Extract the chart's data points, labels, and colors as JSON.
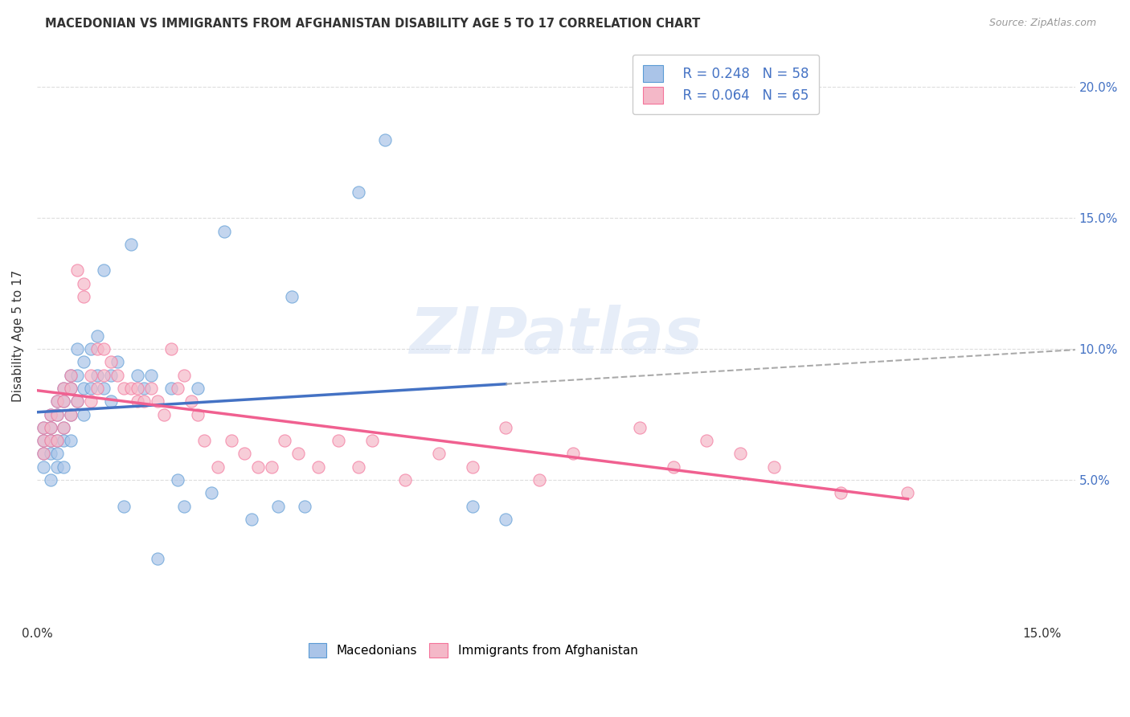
{
  "title": "MACEDONIAN VS IMMIGRANTS FROM AFGHANISTAN DISABILITY AGE 5 TO 17 CORRELATION CHART",
  "source": "Source: ZipAtlas.com",
  "ylabel": "Disability Age 5 to 17",
  "xlim": [
    0.0,
    0.155
  ],
  "ylim": [
    -0.005,
    0.215
  ],
  "legend_r1": "R = 0.248",
  "legend_n1": "N = 58",
  "legend_r2": "R = 0.064",
  "legend_n2": "N = 65",
  "color_macedonian_face": "#aac4e8",
  "color_macedonian_edge": "#5b9bd5",
  "color_afghanistan_face": "#f4b8c8",
  "color_afghanistan_edge": "#f4739a",
  "color_line_macedonian": "#4472c4",
  "color_line_afghanistan": "#f06090",
  "color_line_dashed": "#aaaaaa",
  "watermark": "ZIPatlas",
  "background_color": "#ffffff",
  "grid_color": "#dddddd",
  "macedonian_x": [
    0.001,
    0.001,
    0.001,
    0.001,
    0.002,
    0.002,
    0.002,
    0.002,
    0.002,
    0.003,
    0.003,
    0.003,
    0.003,
    0.003,
    0.004,
    0.004,
    0.004,
    0.004,
    0.004,
    0.005,
    0.005,
    0.005,
    0.005,
    0.006,
    0.006,
    0.006,
    0.007,
    0.007,
    0.007,
    0.008,
    0.008,
    0.009,
    0.009,
    0.01,
    0.01,
    0.011,
    0.011,
    0.012,
    0.013,
    0.014,
    0.015,
    0.016,
    0.017,
    0.018,
    0.02,
    0.021,
    0.022,
    0.024,
    0.026,
    0.028,
    0.032,
    0.036,
    0.038,
    0.04,
    0.048,
    0.052,
    0.065,
    0.07
  ],
  "macedonian_y": [
    0.07,
    0.065,
    0.06,
    0.055,
    0.075,
    0.07,
    0.065,
    0.06,
    0.05,
    0.08,
    0.075,
    0.065,
    0.06,
    0.055,
    0.085,
    0.08,
    0.07,
    0.065,
    0.055,
    0.09,
    0.085,
    0.075,
    0.065,
    0.1,
    0.09,
    0.08,
    0.095,
    0.085,
    0.075,
    0.1,
    0.085,
    0.105,
    0.09,
    0.13,
    0.085,
    0.09,
    0.08,
    0.095,
    0.04,
    0.14,
    0.09,
    0.085,
    0.09,
    0.02,
    0.085,
    0.05,
    0.04,
    0.085,
    0.045,
    0.145,
    0.035,
    0.04,
    0.12,
    0.04,
    0.16,
    0.18,
    0.04,
    0.035
  ],
  "afghanistan_x": [
    0.001,
    0.001,
    0.001,
    0.002,
    0.002,
    0.002,
    0.003,
    0.003,
    0.003,
    0.004,
    0.004,
    0.004,
    0.005,
    0.005,
    0.005,
    0.006,
    0.006,
    0.007,
    0.007,
    0.008,
    0.008,
    0.009,
    0.009,
    0.01,
    0.01,
    0.011,
    0.012,
    0.013,
    0.014,
    0.015,
    0.015,
    0.016,
    0.017,
    0.018,
    0.019,
    0.02,
    0.021,
    0.022,
    0.023,
    0.024,
    0.025,
    0.027,
    0.029,
    0.031,
    0.033,
    0.035,
    0.037,
    0.039,
    0.042,
    0.045,
    0.048,
    0.05,
    0.055,
    0.06,
    0.065,
    0.07,
    0.075,
    0.08,
    0.09,
    0.095,
    0.1,
    0.105,
    0.11,
    0.12,
    0.13
  ],
  "afghanistan_y": [
    0.07,
    0.065,
    0.06,
    0.075,
    0.07,
    0.065,
    0.08,
    0.075,
    0.065,
    0.085,
    0.08,
    0.07,
    0.09,
    0.085,
    0.075,
    0.13,
    0.08,
    0.125,
    0.12,
    0.09,
    0.08,
    0.1,
    0.085,
    0.1,
    0.09,
    0.095,
    0.09,
    0.085,
    0.085,
    0.085,
    0.08,
    0.08,
    0.085,
    0.08,
    0.075,
    0.1,
    0.085,
    0.09,
    0.08,
    0.075,
    0.065,
    0.055,
    0.065,
    0.06,
    0.055,
    0.055,
    0.065,
    0.06,
    0.055,
    0.065,
    0.055,
    0.065,
    0.05,
    0.06,
    0.055,
    0.07,
    0.05,
    0.06,
    0.07,
    0.055,
    0.065,
    0.06,
    0.055,
    0.045,
    0.045
  ]
}
